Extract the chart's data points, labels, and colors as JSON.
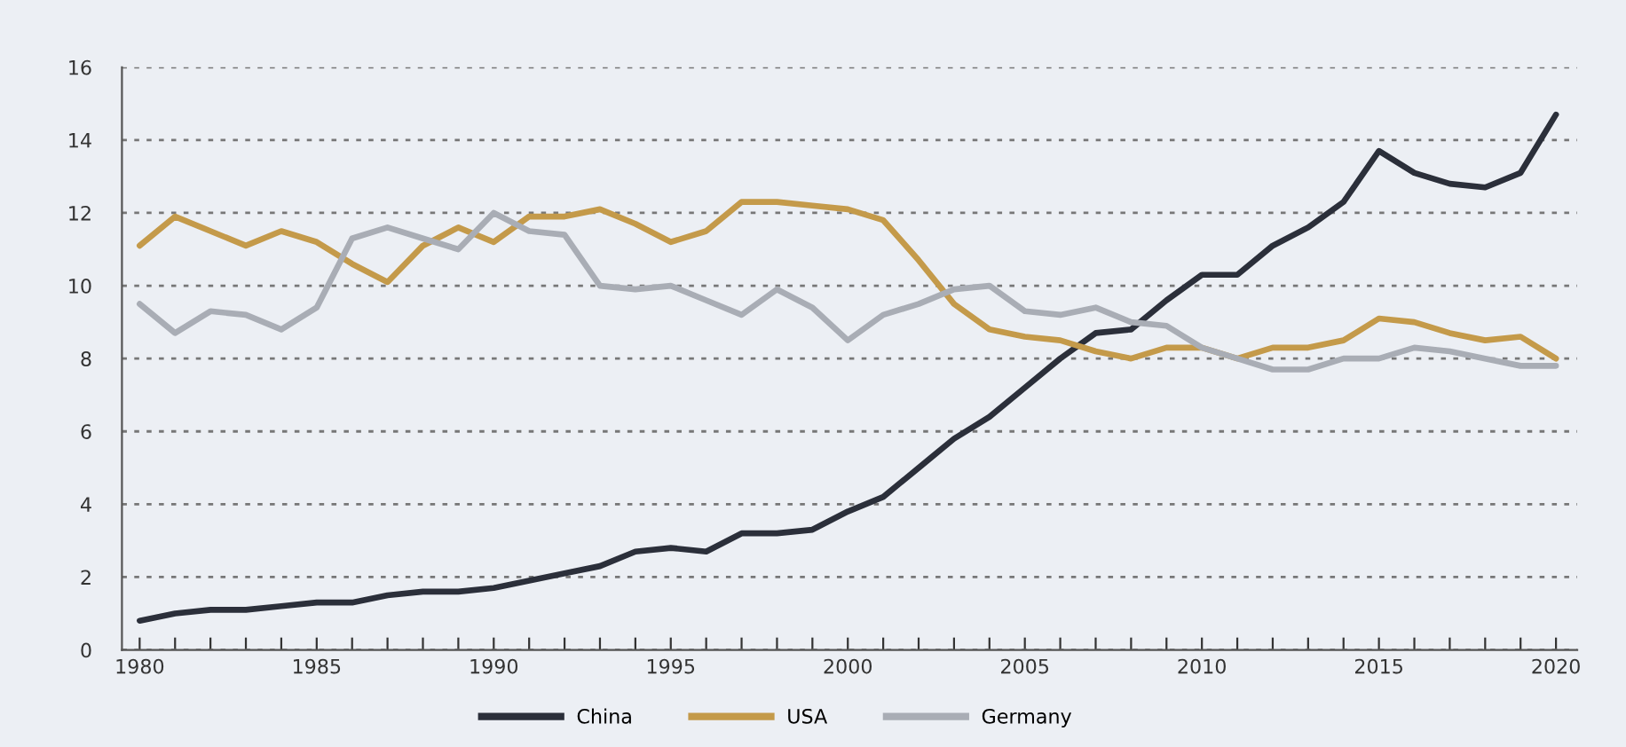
{
  "chart_data": {
    "type": "line",
    "x": [
      1980,
      1981,
      1982,
      1983,
      1984,
      1985,
      1986,
      1987,
      1988,
      1989,
      1990,
      1991,
      1992,
      1993,
      1994,
      1995,
      1996,
      1997,
      1998,
      1999,
      2000,
      2001,
      2002,
      2003,
      2004,
      2005,
      2006,
      2007,
      2008,
      2009,
      2010,
      2011,
      2012,
      2013,
      2014,
      2015,
      2016,
      2017,
      2018,
      2019,
      2020
    ],
    "series": [
      {
        "name": "China",
        "color": "#2b2f3a",
        "values": [
          0.8,
          1.0,
          1.1,
          1.1,
          1.2,
          1.3,
          1.3,
          1.5,
          1.6,
          1.6,
          1.7,
          1.9,
          2.1,
          2.3,
          2.7,
          2.8,
          2.7,
          3.2,
          3.2,
          3.3,
          3.8,
          4.2,
          5.0,
          5.8,
          6.4,
          7.2,
          8.0,
          8.7,
          8.8,
          9.6,
          10.3,
          10.3,
          11.1,
          11.6,
          12.3,
          13.7,
          13.1,
          12.8,
          12.7,
          13.1,
          14.7
        ]
      },
      {
        "name": "USA",
        "color": "#c49a4a",
        "values": [
          11.1,
          11.9,
          11.5,
          11.1,
          11.5,
          11.2,
          10.6,
          10.1,
          11.1,
          11.6,
          11.2,
          11.9,
          11.9,
          12.1,
          11.7,
          11.2,
          11.5,
          12.3,
          12.3,
          12.2,
          12.1,
          11.8,
          10.7,
          9.5,
          8.8,
          8.6,
          8.5,
          8.2,
          8.0,
          8.3,
          8.3,
          8.0,
          8.3,
          8.3,
          8.5,
          9.1,
          9.0,
          8.7,
          8.5,
          8.6,
          8.0
        ]
      },
      {
        "name": "Germany",
        "color": "#a9adb5",
        "values": [
          9.5,
          8.7,
          9.3,
          9.2,
          8.8,
          9.4,
          11.3,
          11.6,
          11.3,
          11.0,
          12.0,
          11.5,
          11.4,
          10.0,
          9.9,
          10.0,
          9.6,
          9.2,
          9.9,
          9.4,
          8.5,
          9.2,
          9.5,
          9.9,
          10.0,
          9.3,
          9.2,
          9.4,
          9.0,
          8.9,
          8.3,
          8.0,
          7.7,
          7.7,
          8.0,
          8.0,
          8.3,
          8.2,
          8.0,
          7.8,
          7.8
        ]
      }
    ],
    "xlim": [
      1979.5,
      2020.6
    ],
    "xticks": [
      1980,
      {
        "value": 1981,
        "label": null
      },
      {
        "value": 1982,
        "label": null
      },
      {
        "value": 1983,
        "label": null
      },
      {
        "value": 1984,
        "label": null
      },
      1985,
      {
        "value": 1986,
        "label": null
      },
      {
        "value": 1987,
        "label": null
      },
      {
        "value": 1988,
        "label": null
      },
      {
        "value": 1989,
        "label": null
      },
      1990,
      {
        "value": 1991,
        "label": null
      },
      {
        "value": 1992,
        "label": null
      },
      {
        "value": 1993,
        "label": null
      },
      {
        "value": 1994,
        "label": null
      },
      1995,
      {
        "value": 1996,
        "label": null
      },
      {
        "value": 1997,
        "label": null
      },
      {
        "value": 1998,
        "label": null
      },
      {
        "value": 1999,
        "label": null
      },
      2000,
      {
        "value": 2001,
        "label": null
      },
      {
        "value": 2002,
        "label": null
      },
      {
        "value": 2003,
        "label": null
      },
      {
        "value": 2004,
        "label": null
      },
      2005,
      {
        "value": 2006,
        "label": null
      },
      {
        "value": 2007,
        "label": null
      },
      {
        "value": 2008,
        "label": null
      },
      {
        "value": 2009,
        "label": null
      },
      2010,
      {
        "value": 2011,
        "label": null
      },
      {
        "value": 2012,
        "label": null
      },
      {
        "value": 2013,
        "label": null
      },
      {
        "value": 2014,
        "label": null
      },
      2015,
      {
        "value": 2016,
        "label": null
      },
      {
        "value": 2017,
        "label": null
      },
      {
        "value": 2018,
        "label": null
      },
      {
        "value": 2019,
        "label": null
      },
      2020
    ],
    "ylim": [
      0,
      16
    ],
    "yticks": [
      0,
      2,
      4,
      6,
      8,
      10,
      12,
      14,
      16
    ],
    "grid": "y",
    "legend": "bottom",
    "line_style": "solid",
    "marker": "none"
  }
}
